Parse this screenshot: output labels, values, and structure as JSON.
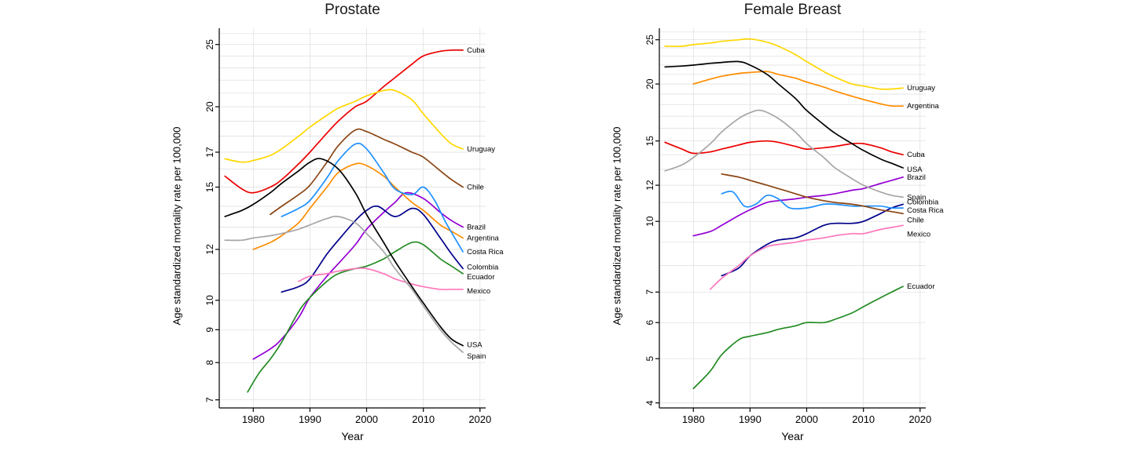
{
  "page": {
    "background": "#ffffff"
  },
  "chart_data": [
    {
      "id": "prostate",
      "type": "line",
      "title": "Prostate",
      "xlabel": "Year",
      "ylabel": "Age standardized mortality rate per 100,000",
      "x_ticks": [
        1980,
        1990,
        2000,
        2010,
        2020
      ],
      "y_ticks": [
        7,
        8,
        9,
        10,
        12,
        15,
        17,
        20,
        25
      ],
      "y_scale": "log",
      "xlim": [
        1974,
        2021
      ],
      "ylim": [
        6.8,
        26.5
      ],
      "grid": true,
      "grid_color": "#dcdcdc",
      "axis_color": "#000000",
      "legend_position": "right-end-labels",
      "series": [
        {
          "name": "Cuba",
          "color": "#ed0000",
          "label_dy": 0,
          "x": [
            1975,
            1978,
            1980,
            1983,
            1985,
            1988,
            1990,
            1993,
            1995,
            1998,
            2000,
            2003,
            2005,
            2008,
            2010,
            2013,
            2015,
            2017
          ],
          "y": [
            15.6,
            14.9,
            14.7,
            15.0,
            15.4,
            16.3,
            17.0,
            18.2,
            19.0,
            20.0,
            20.4,
            21.5,
            22.2,
            23.3,
            24.0,
            24.4,
            24.5,
            24.5
          ]
        },
        {
          "name": "Uruguay",
          "color": "#ffd700",
          "label_dy": 0,
          "x": [
            1975,
            1978,
            1980,
            1983,
            1985,
            1988,
            1990,
            1993,
            1995,
            1998,
            2000,
            2003,
            2005,
            2008,
            2010,
            2013,
            2015,
            2017
          ],
          "y": [
            16.6,
            16.4,
            16.5,
            16.8,
            17.2,
            18.0,
            18.6,
            19.4,
            19.9,
            20.4,
            20.8,
            21.2,
            21.2,
            20.5,
            19.5,
            18.2,
            17.5,
            17.2
          ]
        },
        {
          "name": "Chile",
          "color": "#8b4513",
          "label_dy": 0,
          "x": [
            1983,
            1985,
            1988,
            1990,
            1993,
            1995,
            1998,
            2000,
            2003,
            2005,
            2008,
            2010,
            2013,
            2015,
            2017
          ],
          "y": [
            13.6,
            14.0,
            14.6,
            15.1,
            16.4,
            17.4,
            18.4,
            18.3,
            17.8,
            17.5,
            17.0,
            16.7,
            15.9,
            15.4,
            15.0
          ]
        },
        {
          "name": "Brazil",
          "color": "#9400d3",
          "label_dy": 0,
          "x": [
            1980,
            1983,
            1985,
            1988,
            1990,
            1993,
            1995,
            1998,
            2000,
            2003,
            2005,
            2007,
            2010,
            2013,
            2015,
            2017
          ],
          "y": [
            8.1,
            8.4,
            8.7,
            9.4,
            10.1,
            10.9,
            11.4,
            12.2,
            12.9,
            13.7,
            14.2,
            14.7,
            14.4,
            13.7,
            13.3,
            13.0
          ]
        },
        {
          "name": "Argentina",
          "color": "#ff8c00",
          "label_dy": 0,
          "x": [
            1980,
            1983,
            1985,
            1988,
            1990,
            1993,
            1995,
            1998,
            2000,
            2003,
            2005,
            2008,
            2010,
            2013,
            2015,
            2017
          ],
          "y": [
            12.0,
            12.3,
            12.6,
            13.2,
            13.9,
            15.0,
            15.8,
            16.3,
            16.2,
            15.6,
            15.0,
            14.2,
            13.8,
            13.1,
            12.8,
            12.5
          ]
        },
        {
          "name": "Costa Rica",
          "color": "#1e90ff",
          "label_dy": 0,
          "x": [
            1985,
            1988,
            1990,
            1993,
            1995,
            1998,
            2000,
            2003,
            2005,
            2008,
            2010,
            2012,
            2014,
            2017
          ],
          "y": [
            13.5,
            13.9,
            14.3,
            15.5,
            16.5,
            17.5,
            17.2,
            15.8,
            14.9,
            14.6,
            15.0,
            14.3,
            13.2,
            11.9
          ]
        },
        {
          "name": "Colombia",
          "color": "#00008b",
          "label_dy": -2,
          "x": [
            1985,
            1988,
            1990,
            1993,
            1995,
            1998,
            2000,
            2002,
            2005,
            2008,
            2010,
            2013,
            2015,
            2017
          ],
          "y": [
            10.3,
            10.5,
            10.8,
            11.8,
            12.4,
            13.3,
            13.8,
            14.0,
            13.5,
            13.9,
            13.6,
            12.5,
            11.8,
            11.2
          ]
        },
        {
          "name": "Ecuador",
          "color": "#228b22",
          "label_dy": 4,
          "x": [
            1979,
            1981,
            1983,
            1985,
            1988,
            1990,
            1993,
            1995,
            1998,
            2000,
            2003,
            2005,
            2008,
            2010,
            2013,
            2015,
            2017
          ],
          "y": [
            7.2,
            7.7,
            8.1,
            8.6,
            9.6,
            10.1,
            10.7,
            11.0,
            11.2,
            11.3,
            11.6,
            11.9,
            12.3,
            12.2,
            11.6,
            11.3,
            11.0
          ]
        },
        {
          "name": "Mexico",
          "color": "#ff77bc",
          "label_dy": 2,
          "x": [
            1988,
            1990,
            1993,
            1995,
            1998,
            2000,
            2003,
            2005,
            2008,
            2010,
            2013,
            2015,
            2017
          ],
          "y": [
            10.7,
            10.9,
            11.0,
            11.1,
            11.2,
            11.2,
            11.0,
            10.8,
            10.6,
            10.5,
            10.4,
            10.4,
            10.4
          ]
        },
        {
          "name": "USA",
          "color": "#000000",
          "label_dy": -1,
          "x": [
            1975,
            1978,
            1980,
            1983,
            1985,
            1988,
            1990,
            1992,
            1995,
            1998,
            2000,
            2003,
            2005,
            2008,
            2010,
            2013,
            2015,
            2017
          ],
          "y": [
            13.5,
            13.8,
            14.1,
            14.7,
            15.2,
            15.9,
            16.4,
            16.6,
            16.0,
            14.7,
            13.6,
            12.3,
            11.5,
            10.5,
            9.9,
            9.1,
            8.7,
            8.5
          ]
        },
        {
          "name": "Spain",
          "color": "#a6a6a6",
          "label_dy": 5,
          "x": [
            1975,
            1978,
            1980,
            1983,
            1985,
            1988,
            1990,
            1993,
            1995,
            1998,
            2000,
            2003,
            2005,
            2008,
            2010,
            2013,
            2015,
            2017
          ],
          "y": [
            12.4,
            12.4,
            12.5,
            12.6,
            12.7,
            12.9,
            13.1,
            13.4,
            13.5,
            13.2,
            12.7,
            11.9,
            11.2,
            10.4,
            9.8,
            9.0,
            8.6,
            8.3
          ]
        }
      ]
    },
    {
      "id": "female-breast",
      "type": "line",
      "title": "Female Breast",
      "xlabel": "Year",
      "ylabel": "Age standardized mortality rate per 100,000",
      "x_ticks": [
        1980,
        1990,
        2000,
        2010,
        2020
      ],
      "y_ticks": [
        4,
        5,
        6,
        7,
        10,
        12,
        15,
        20,
        25
      ],
      "y_scale": "log",
      "xlim": [
        1974,
        2021
      ],
      "ylim": [
        3.9,
        26.5
      ],
      "grid": true,
      "grid_color": "#dcdcdc",
      "axis_color": "#000000",
      "legend_position": "right-end-labels",
      "series": [
        {
          "name": "Uruguay",
          "color": "#ffd700",
          "label_dy": 0,
          "x": [
            1975,
            1978,
            1980,
            1983,
            1985,
            1988,
            1990,
            1993,
            1995,
            1998,
            2000,
            2003,
            2005,
            2008,
            2010,
            2013,
            2015,
            2017
          ],
          "y": [
            24.2,
            24.2,
            24.4,
            24.6,
            24.8,
            25.0,
            25.1,
            24.7,
            24.2,
            23.2,
            22.4,
            21.3,
            20.7,
            20.0,
            19.8,
            19.5,
            19.5,
            19.6
          ]
        },
        {
          "name": "Argentina",
          "color": "#ff8c00",
          "label_dy": 0,
          "x": [
            1980,
            1983,
            1985,
            1988,
            1990,
            1993,
            1995,
            1998,
            2000,
            2003,
            2005,
            2008,
            2010,
            2013,
            2015,
            2017
          ],
          "y": [
            20.0,
            20.5,
            20.8,
            21.1,
            21.2,
            21.3,
            21.0,
            20.6,
            20.2,
            19.7,
            19.3,
            18.8,
            18.5,
            18.1,
            17.9,
            17.9
          ]
        },
        {
          "name": "Cuba",
          "color": "#ed0000",
          "label_dy": 0,
          "x": [
            1975,
            1978,
            1980,
            1983,
            1985,
            1988,
            1990,
            1993,
            1995,
            1998,
            2000,
            2003,
            2005,
            2008,
            2010,
            2013,
            2015,
            2017
          ],
          "y": [
            14.9,
            14.4,
            14.1,
            14.2,
            14.4,
            14.7,
            14.9,
            15.0,
            14.9,
            14.6,
            14.4,
            14.5,
            14.6,
            14.8,
            14.8,
            14.5,
            14.2,
            14.0
          ]
        },
        {
          "name": "USA",
          "color": "#000000",
          "label_dy": 2,
          "x": [
            1975,
            1978,
            1980,
            1983,
            1985,
            1988,
            1990,
            1993,
            1995,
            1998,
            2000,
            2003,
            2005,
            2008,
            2010,
            2013,
            2015,
            2017
          ],
          "y": [
            21.8,
            21.9,
            22.0,
            22.2,
            22.3,
            22.4,
            22.0,
            21.0,
            20.0,
            18.6,
            17.5,
            16.3,
            15.6,
            14.8,
            14.3,
            13.7,
            13.4,
            13.1
          ]
        },
        {
          "name": "Brazil",
          "color": "#9400d3",
          "label_dy": 0,
          "x": [
            1980,
            1983,
            1985,
            1988,
            1990,
            1993,
            1995,
            1998,
            2000,
            2003,
            2005,
            2008,
            2010,
            2013,
            2015,
            2017
          ],
          "y": [
            9.3,
            9.5,
            9.8,
            10.3,
            10.6,
            11.0,
            11.1,
            11.2,
            11.3,
            11.4,
            11.5,
            11.7,
            11.8,
            12.1,
            12.3,
            12.5
          ]
        },
        {
          "name": "Spain",
          "color": "#a6a6a6",
          "label_dy": 0,
          "x": [
            1975,
            1978,
            1980,
            1983,
            1985,
            1988,
            1990,
            1992,
            1995,
            1998,
            2000,
            2003,
            2005,
            2008,
            2010,
            2013,
            2015,
            2017
          ],
          "y": [
            12.9,
            13.3,
            13.8,
            14.8,
            15.7,
            16.8,
            17.3,
            17.5,
            16.8,
            15.7,
            14.8,
            13.8,
            13.1,
            12.4,
            12.0,
            11.6,
            11.4,
            11.3
          ]
        },
        {
          "name": "Colombia",
          "color": "#00008b",
          "label_dy": -3,
          "x": [
            1985,
            1988,
            1990,
            1993,
            1995,
            1998,
            2000,
            2003,
            2005,
            2008,
            2010,
            2013,
            2015,
            2017
          ],
          "y": [
            7.6,
            7.9,
            8.4,
            8.9,
            9.1,
            9.2,
            9.4,
            9.8,
            9.9,
            9.9,
            10.0,
            10.4,
            10.7,
            10.9
          ]
        },
        {
          "name": "Costa Rica",
          "color": "#1e90ff",
          "label_dy": 3,
          "x": [
            1985,
            1987,
            1989,
            1991,
            1993,
            1995,
            1997,
            2000,
            2003,
            2005,
            2008,
            2010,
            2013,
            2015,
            2017
          ],
          "y": [
            11.5,
            11.6,
            10.8,
            10.9,
            11.4,
            11.2,
            10.7,
            10.7,
            10.9,
            10.9,
            10.8,
            10.8,
            10.8,
            10.7,
            10.7
          ]
        },
        {
          "name": "Chile",
          "color": "#8b4513",
          "label_dy": 8,
          "x": [
            1985,
            1988,
            1990,
            1993,
            1995,
            1998,
            2000,
            2003,
            2005,
            2008,
            2010,
            2013,
            2015,
            2017
          ],
          "y": [
            12.7,
            12.5,
            12.3,
            12.0,
            11.8,
            11.5,
            11.3,
            11.1,
            11.0,
            10.9,
            10.8,
            10.6,
            10.5,
            10.4
          ]
        },
        {
          "name": "Mexico",
          "color": "#ff77bc",
          "label_dy": 11,
          "x": [
            1983,
            1985,
            1988,
            1990,
            1993,
            1995,
            1998,
            2000,
            2003,
            2005,
            2008,
            2010,
            2013,
            2015,
            2017
          ],
          "y": [
            7.1,
            7.5,
            8.0,
            8.4,
            8.8,
            8.9,
            9.0,
            9.1,
            9.2,
            9.3,
            9.4,
            9.4,
            9.6,
            9.7,
            9.8
          ]
        },
        {
          "name": "Ecuador",
          "color": "#228b22",
          "label_dy": 0,
          "x": [
            1980,
            1983,
            1985,
            1988,
            1990,
            1993,
            1995,
            1998,
            2000,
            2003,
            2005,
            2008,
            2010,
            2013,
            2015,
            2017
          ],
          "y": [
            4.3,
            4.7,
            5.1,
            5.5,
            5.6,
            5.7,
            5.8,
            5.9,
            6.0,
            6.0,
            6.1,
            6.3,
            6.5,
            6.8,
            7.0,
            7.2
          ]
        }
      ]
    }
  ]
}
